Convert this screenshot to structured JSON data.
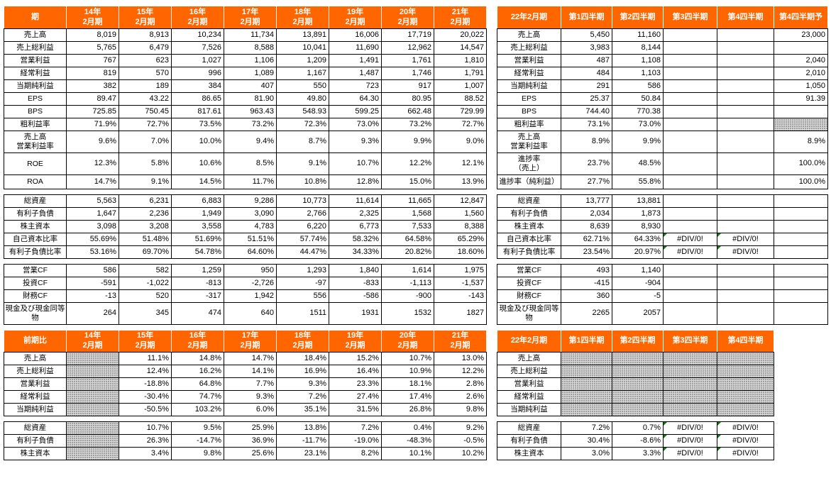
{
  "colors": {
    "header_bg": "#FF6600",
    "header_text": "#FFFFFF",
    "grid_line": "#000000",
    "shade_bg": "#D8D8D8",
    "shade_dot": "#8C8C8C",
    "error_indicator": "#008000"
  },
  "panels": {
    "annual": {
      "header": [
        "期",
        "14年\n2月期",
        "15年\n2月期",
        "16年\n2月期",
        "17年\n2月期",
        "18年\n2月期",
        "19年\n2月期",
        "20年\n2月期",
        "21年\n2月期"
      ],
      "sections": [
        {
          "rows": [
            {
              "label": "売上高",
              "values": [
                "8,019",
                "8,913",
                "10,234",
                "11,734",
                "13,891",
                "16,006",
                "17,719",
                "20,022"
              ]
            },
            {
              "label": "売上総利益",
              "values": [
                "5,765",
                "6,479",
                "7,526",
                "8,588",
                "10,041",
                "11,690",
                "12,962",
                "14,547"
              ]
            },
            {
              "label": "営業利益",
              "values": [
                "767",
                "623",
                "1,027",
                "1,106",
                "1,209",
                "1,491",
                "1,761",
                "1,810"
              ]
            },
            {
              "label": "経常利益",
              "values": [
                "819",
                "570",
                "996",
                "1,089",
                "1,167",
                "1,487",
                "1,746",
                "1,791"
              ]
            },
            {
              "label": "当期純利益",
              "values": [
                "382",
                "189",
                "384",
                "407",
                "550",
                "723",
                "917",
                "1,007"
              ]
            },
            {
              "label": "EPS",
              "values": [
                "89.47",
                "43.22",
                "86.65",
                "81.90",
                "49.80",
                "64.30",
                "80.95",
                "88.52"
              ]
            },
            {
              "label": "BPS",
              "values": [
                "725.85",
                "750.45",
                "817.61",
                "963.43",
                "548.93",
                "599.25",
                "662.48",
                "729.99"
              ]
            },
            {
              "label": "粗利益率",
              "values": [
                "71.9%",
                "72.7%",
                "73.5%",
                "73.2%",
                "72.3%",
                "73.0%",
                "73.2%",
                "72.7%"
              ]
            },
            {
              "label": "売上高\n営業利益率",
              "values": [
                "9.6%",
                "7.0%",
                "10.0%",
                "9.4%",
                "8.7%",
                "9.3%",
                "9.9%",
                "9.0%"
              ]
            },
            {
              "label": "ROE",
              "values": [
                "12.3%",
                "5.8%",
                "10.6%",
                "8.5%",
                "9.1%",
                "10.7%",
                "12.2%",
                "12.1%"
              ]
            },
            {
              "label": "ROA",
              "values": [
                "14.7%",
                "9.1%",
                "14.5%",
                "11.7%",
                "10.8%",
                "12.8%",
                "15.0%",
                "13.9%"
              ]
            }
          ]
        },
        {
          "rows": [
            {
              "label": "総資産",
              "values": [
                "5,563",
                "6,231",
                "6,883",
                "9,286",
                "10,773",
                "11,614",
                "11,665",
                "12,847"
              ]
            },
            {
              "label": "有利子負債",
              "values": [
                "1,647",
                "2,236",
                "1,949",
                "3,090",
                "2,766",
                "2,325",
                "1,568",
                "1,560"
              ]
            },
            {
              "label": "株主資本",
              "values": [
                "3,098",
                "3,208",
                "3,558",
                "4,783",
                "6,220",
                "6,773",
                "7,533",
                "8,388"
              ]
            },
            {
              "label": "自己資本比率",
              "values": [
                "55.69%",
                "51.48%",
                "51.69%",
                "51.51%",
                "57.74%",
                "58.32%",
                "64.58%",
                "65.29%"
              ]
            },
            {
              "label": "有利子負債比率",
              "values": [
                "53.16%",
                "69.70%",
                "54.78%",
                "64.60%",
                "44.47%",
                "34.33%",
                "20.82%",
                "18.60%"
              ]
            }
          ]
        },
        {
          "rows": [
            {
              "label": "営業CF",
              "values": [
                "586",
                "582",
                "1,259",
                "950",
                "1,293",
                "1,840",
                "1,614",
                "1,975"
              ]
            },
            {
              "label": "投資CF",
              "values": [
                "-591",
                "-1,022",
                "-813",
                "-2,726",
                "-97",
                "-833",
                "-1,113",
                "-1,537"
              ]
            },
            {
              "label": "財務CF",
              "values": [
                "-13",
                "520",
                "-317",
                "1,942",
                "556",
                "-586",
                "-900",
                "-143"
              ]
            },
            {
              "label": "現金及び現金同等物",
              "values": [
                "264",
                "345",
                "474",
                "640",
                "1511",
                "1931",
                "1532",
                "1827"
              ]
            }
          ]
        }
      ]
    },
    "quarterly": {
      "header": [
        "22年2月期",
        "第1四半期",
        "第2四半期",
        "第3四半期",
        "第4四半期",
        "第4四半期予"
      ],
      "sections": [
        {
          "rows": [
            {
              "label": "売上高",
              "values": [
                "5,450",
                "11,160",
                "",
                "",
                "23,000"
              ]
            },
            {
              "label": "売上総利益",
              "values": [
                "3,983",
                "8,144",
                "",
                "",
                ""
              ]
            },
            {
              "label": "営業利益",
              "values": [
                "487",
                "1,108",
                "",
                "",
                "2,040"
              ]
            },
            {
              "label": "経常利益",
              "values": [
                "484",
                "1,103",
                "",
                "",
                "2,010"
              ]
            },
            {
              "label": "当期純利益",
              "values": [
                "291",
                "586",
                "",
                "",
                "1,050"
              ]
            },
            {
              "label": "EPS",
              "values": [
                "25.37",
                "50.84",
                "",
                "",
                "91.39"
              ]
            },
            {
              "label": "BPS",
              "values": [
                "744.40",
                "770.38",
                "",
                "",
                ""
              ]
            },
            {
              "label": "粗利益率",
              "values": [
                "73.1%",
                "73.0%",
                "",
                "",
                null
              ]
            },
            {
              "label": "売上高\n営業利益率",
              "values": [
                "8.9%",
                "9.9%",
                "",
                "",
                "8.9%"
              ]
            },
            {
              "label": "進捗率\n（売上）",
              "values": [
                "23.7%",
                "48.5%",
                "",
                "",
                "100.0%"
              ]
            },
            {
              "label": "進捗率（純利益）",
              "values": [
                "27.7%",
                "55.8%",
                "",
                "",
                "100.0%"
              ]
            }
          ]
        },
        {
          "rows": [
            {
              "label": "総資産",
              "values": [
                "13,777",
                "13,881",
                "",
                "",
                ""
              ]
            },
            {
              "label": "有利子負債",
              "values": [
                "2,034",
                "1,873",
                "",
                "",
                ""
              ]
            },
            {
              "label": "株主資本",
              "values": [
                "8,639",
                "8,930",
                "",
                "",
                ""
              ]
            },
            {
              "label": "自己資本比率",
              "values": [
                "62.71%",
                "64.33%",
                "#DIV/0!",
                "#DIV/0!",
                ""
              ]
            },
            {
              "label": "有利子負債比率",
              "values": [
                "23.54%",
                "20.97%",
                "#DIV/0!",
                "#DIV/0!",
                ""
              ]
            }
          ]
        },
        {
          "rows": [
            {
              "label": "営業CF",
              "values": [
                "493",
                "1,140",
                "",
                "",
                ""
              ]
            },
            {
              "label": "投資CF",
              "values": [
                "-415",
                "-904",
                "",
                "",
                ""
              ]
            },
            {
              "label": "財務CF",
              "values": [
                "360",
                "-5",
                "",
                "",
                ""
              ]
            },
            {
              "label": "現金及び現金同等物",
              "values": [
                "2265",
                "2057",
                "",
                "",
                ""
              ]
            }
          ]
        }
      ]
    },
    "yoy_annual": {
      "header": [
        "前期比",
        "14年\n2月期",
        "15年\n2月期",
        "16年\n2月期",
        "17年\n2月期",
        "18年\n2月期",
        "19年\n2月期",
        "20年\n2月期",
        "21年\n2月期"
      ],
      "sections": [
        {
          "rows": [
            {
              "label": "売上高",
              "values": [
                null,
                "11.1%",
                "14.8%",
                "14.7%",
                "18.4%",
                "15.2%",
                "10.7%",
                "13.0%"
              ]
            },
            {
              "label": "売上総利益",
              "values": [
                null,
                "12.4%",
                "16.2%",
                "14.1%",
                "16.9%",
                "16.4%",
                "10.9%",
                "12.2%"
              ]
            },
            {
              "label": "営業利益",
              "values": [
                null,
                "-18.8%",
                "64.8%",
                "7.7%",
                "9.3%",
                "23.3%",
                "18.1%",
                "2.8%"
              ]
            },
            {
              "label": "経常利益",
              "values": [
                null,
                "-30.4%",
                "74.7%",
                "9.3%",
                "7.2%",
                "27.4%",
                "17.4%",
                "2.6%"
              ]
            },
            {
              "label": "当期純利益",
              "values": [
                null,
                "-50.5%",
                "103.2%",
                "6.0%",
                "35.1%",
                "31.5%",
                "26.8%",
                "9.8%"
              ]
            }
          ]
        },
        {
          "rows": [
            {
              "label": "総資産",
              "values": [
                null,
                "10.7%",
                "9.5%",
                "25.9%",
                "13.8%",
                "7.2%",
                "0.4%",
                "9.2%"
              ]
            },
            {
              "label": "有利子負債",
              "values": [
                null,
                "26.3%",
                "-14.7%",
                "36.9%",
                "-11.7%",
                "-19.0%",
                "-48.3%",
                "-0.5%"
              ]
            },
            {
              "label": "株主資本",
              "values": [
                null,
                "3.4%",
                "9.8%",
                "25.6%",
                "23.1%",
                "8.2%",
                "10.1%",
                "10.2%"
              ]
            }
          ]
        }
      ]
    },
    "yoy_quarterly": {
      "header": [
        "22年2月期",
        "第1四半期",
        "第2四半期",
        "第3四半期",
        "第4四半期"
      ],
      "sections": [
        {
          "rows": [
            {
              "label": "売上高",
              "values": [
                null,
                null,
                null,
                null
              ]
            },
            {
              "label": "売上総利益",
              "values": [
                null,
                null,
                null,
                null
              ]
            },
            {
              "label": "営業利益",
              "values": [
                null,
                null,
                null,
                null
              ]
            },
            {
              "label": "経常利益",
              "values": [
                null,
                null,
                null,
                null
              ]
            },
            {
              "label": "当期純利益",
              "values": [
                null,
                null,
                null,
                null
              ]
            }
          ]
        },
        {
          "rows": [
            {
              "label": "総資産",
              "values": [
                "7.2%",
                "0.7%",
                "#DIV/0!",
                "#DIV/0!"
              ]
            },
            {
              "label": "有利子負債",
              "values": [
                "30.4%",
                "-8.6%",
                "#DIV/0!",
                "#DIV/0!"
              ]
            },
            {
              "label": "株主資本",
              "values": [
                "3.0%",
                "3.3%",
                "#DIV/0!",
                "#DIV/0!"
              ]
            }
          ]
        }
      ]
    }
  }
}
